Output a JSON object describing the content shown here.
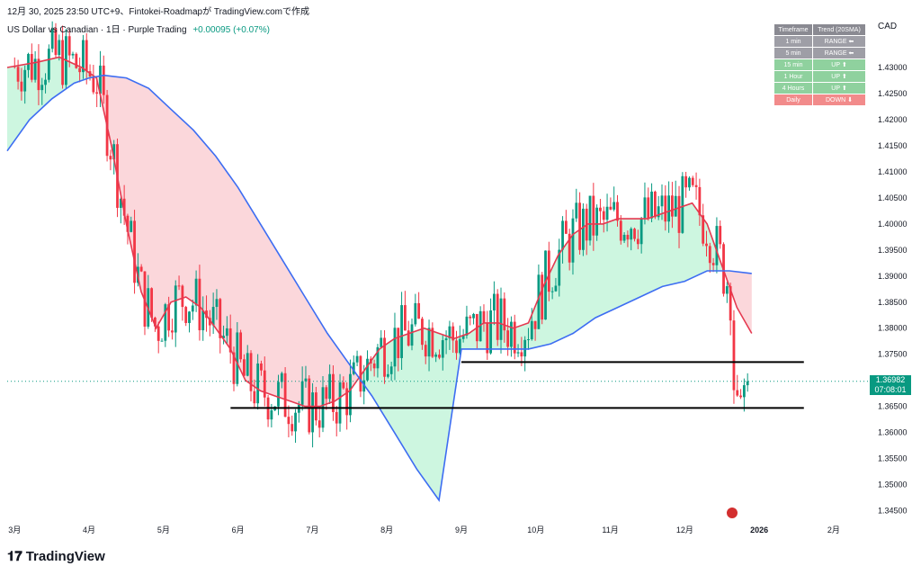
{
  "header": {
    "timestamp_line": "12月 30, 2025 23:50 UTC+9、Fintokei-Roadmapが TradingView.comで作成",
    "symbol_line": "US Dollar vs Canadian · 1日 · Purple Trading",
    "change": "+0.00095 (+0.07%)"
  },
  "axis_currency": "CAD",
  "trend_table": {
    "headers": [
      "Timeframe",
      "Trend (20SMA)"
    ],
    "rows": [
      {
        "timeframe": "1 min",
        "trend": "RANGE ⬅",
        "color": "#9e9ea6"
      },
      {
        "timeframe": "5 min",
        "trend": "RANGE ⬅",
        "color": "#9e9ea6"
      },
      {
        "timeframe": "15 min",
        "trend": "UP ⬆",
        "color": "#8fd19e"
      },
      {
        "timeframe": "1 Hour",
        "trend": "UP ⬆",
        "color": "#8fd19e"
      },
      {
        "timeframe": "4 Hours",
        "trend": "UP ⬆",
        "color": "#8fd19e"
      },
      {
        "timeframe": "Daily",
        "trend": "DOWN ⬇",
        "color": "#f28b8b"
      }
    ],
    "header_color": "#8a8a92"
  },
  "current_price": {
    "value": "1.36982",
    "countdown": "07:08:01"
  },
  "logo_text": "TradingView",
  "chart_data": {
    "type": "line",
    "y_ticks": [
      "1.43000",
      "1.42500",
      "1.42000",
      "1.41500",
      "1.41000",
      "1.40500",
      "1.40000",
      "1.39500",
      "1.39000",
      "1.38500",
      "1.38000",
      "1.37500",
      "1.37000",
      "1.36500",
      "1.36000",
      "1.35500",
      "1.35000",
      "1.34500"
    ],
    "ylim": [
      1.3425,
      1.4395
    ],
    "x_ticks": [
      "3月",
      "4月",
      "5月",
      "6月",
      "7月",
      "8月",
      "9月",
      "10月",
      "11月",
      "12月",
      "2026",
      "2月"
    ],
    "x_tick_months": [
      0,
      1,
      2,
      3,
      4,
      5,
      6,
      7,
      8,
      9,
      10,
      11
    ],
    "xlim_months": [
      -0.1,
      11.4
    ],
    "series": [
      {
        "color": "#e53950",
        "x": [
          -0.1,
          0.3,
          0.6,
          0.9,
          1.1,
          1.3,
          1.5,
          1.7,
          1.9,
          2.1,
          2.3,
          2.5,
          2.7,
          2.9,
          3.1,
          3.3,
          3.5,
          3.7,
          3.9,
          4.1,
          4.3,
          4.5,
          4.7,
          4.9,
          5.1,
          5.3,
          5.5,
          5.7,
          5.9,
          6.1,
          6.3,
          6.5,
          6.7,
          6.9,
          7.1,
          7.3,
          7.5,
          7.7,
          7.9,
          8.1,
          8.3,
          8.5,
          8.7,
          8.9,
          9.1,
          9.3,
          9.5,
          9.7,
          9.9
        ],
        "y": [
          1.43,
          1.431,
          1.432,
          1.43,
          1.428,
          1.415,
          1.4,
          1.387,
          1.38,
          1.385,
          1.386,
          1.384,
          1.38,
          1.376,
          1.37,
          1.368,
          1.367,
          1.366,
          1.365,
          1.365,
          1.366,
          1.368,
          1.372,
          1.376,
          1.378,
          1.379,
          1.38,
          1.379,
          1.378,
          1.379,
          1.381,
          1.381,
          1.38,
          1.381,
          1.388,
          1.394,
          1.398,
          1.4,
          1.4,
          1.401,
          1.401,
          1.401,
          1.402,
          1.403,
          1.404,
          1.4,
          1.392,
          1.384,
          1.379
        ]
      },
      {
        "color": "#3d6df2",
        "x": [
          -0.1,
          0.2,
          0.5,
          0.8,
          1.0,
          1.2,
          1.5,
          1.8,
          2.1,
          2.4,
          2.7,
          3.0,
          3.3,
          3.6,
          3.9,
          4.2,
          4.5,
          4.8,
          5.1,
          5.4,
          5.7,
          6.0,
          6.3,
          6.6,
          6.9,
          7.2,
          7.5,
          7.8,
          8.1,
          8.4,
          8.7,
          9.0,
          9.3,
          9.6,
          9.9
        ],
        "y": [
          1.414,
          1.42,
          1.424,
          1.427,
          1.428,
          1.4285,
          1.428,
          1.426,
          1.422,
          1.418,
          1.413,
          1.407,
          1.4,
          1.393,
          1.386,
          1.379,
          1.373,
          1.367,
          1.36,
          1.353,
          1.347,
          1.376,
          1.376,
          1.376,
          1.376,
          1.377,
          1.379,
          1.382,
          1.384,
          1.386,
          1.388,
          1.389,
          1.391,
          1.391,
          1.3905
        ]
      }
    ],
    "horizontal_levels": [
      1.3735,
      1.3647
    ],
    "last_price": 1.36982
  }
}
